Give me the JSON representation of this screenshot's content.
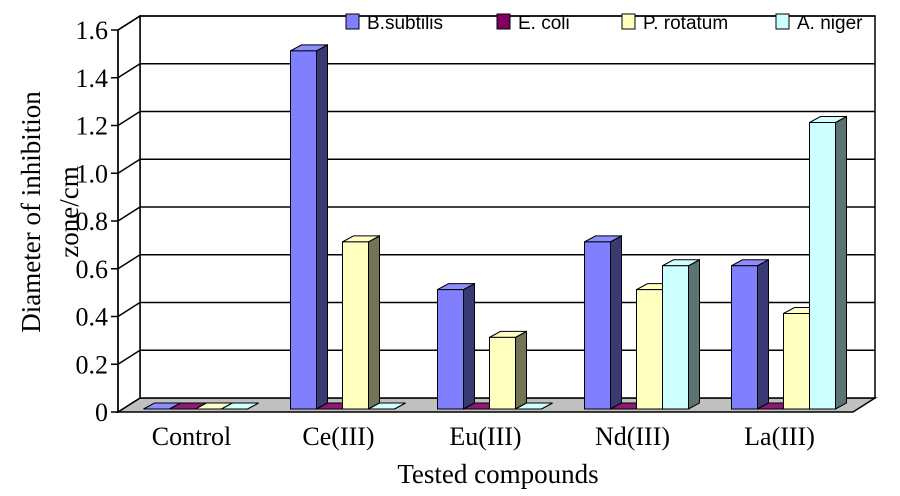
{
  "chart_data": {
    "type": "bar",
    "title": "",
    "xlabel": "Tested compounds",
    "ylabel": "Diameter of inhibition zone/cm",
    "ylabel_lines": [
      "Diameter of inhibition",
      "zone/cm"
    ],
    "ylim": [
      0,
      1.6
    ],
    "yticks": [
      "0",
      "0.2",
      "0.4",
      "0.6",
      "0.8",
      "1.0",
      "1.2",
      "1.4",
      "1.6"
    ],
    "grid": true,
    "legend_position": "top-right",
    "categories": [
      "Control",
      "Ce(III)",
      "Eu(III)",
      "Nd(III)",
      "La(III)"
    ],
    "series": [
      {
        "name": "B.subtilis",
        "color": "#8080ff",
        "values": [
          0,
          1.5,
          0.5,
          0.7,
          0.6
        ]
      },
      {
        "name": "E. coli",
        "color": "#800060",
        "values": [
          0,
          0,
          0,
          0,
          0
        ]
      },
      {
        "name": "P. rotatum",
        "color": "#ffffc0",
        "values": [
          0,
          0.7,
          0.3,
          0.5,
          0.4
        ]
      },
      {
        "name": "A. niger",
        "color": "#ccffff",
        "values": [
          0,
          0,
          0,
          0.6,
          1.2
        ]
      }
    ]
  }
}
